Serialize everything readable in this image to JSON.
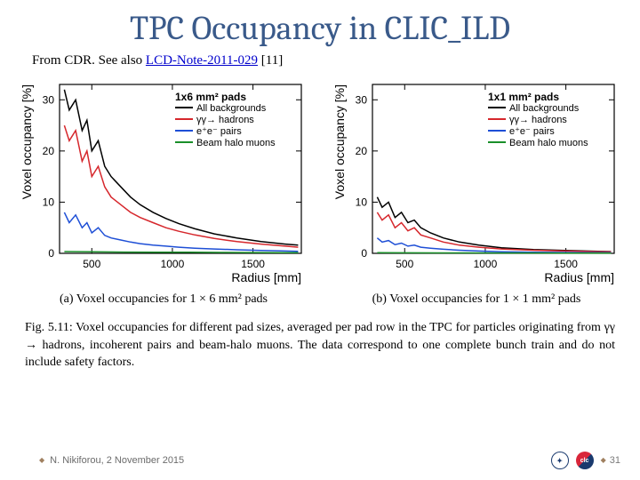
{
  "title": "TPC Occupancy in CLIC_ILD",
  "subtitle_prefix": "From CDR. See also  ",
  "subtitle_link": "LCD-Note-2011-029",
  "subtitle_suffix": " [11]",
  "footer_author": "N. Nikiforou, 2 November 2015",
  "page_number": "31",
  "colors": {
    "title": "#3a5a8a",
    "axis": "#000000",
    "series_all": "#000000",
    "series_gg": "#d6272c",
    "series_ee": "#1e4fd6",
    "series_halo": "#1a8f2a",
    "grid": "#000000",
    "background": "#ffffff"
  },
  "fig_caption": "Fig. 5.11:  Voxel occupancies for different pad sizes, averaged per pad row in the TPC for particles originating from γγ → hadrons, incoherent pairs and beam-halo muons.  The data correspond to one complete bunch train and do not include safety factors.",
  "panel_caption_a": "(a) Voxel occupancies for 1 × 6 mm² pads",
  "panel_caption_b": "(b) Voxel occupancies for 1 × 1 mm² pads",
  "chart_common": {
    "xlabel": "Radius [mm]",
    "ylabel": "Voxel occupancy [%]",
    "xlim": [
      300,
      1800
    ],
    "xticks": [
      500,
      1000,
      1500
    ],
    "axis_linewidth": 1.2,
    "line_width": 1.5,
    "legend_pos": "top-right",
    "legend_fontsize": 11
  },
  "chart_a": {
    "legend_title": "1x6 mm² pads",
    "ylim": [
      0,
      33
    ],
    "yticks": [
      0,
      10,
      20,
      30
    ],
    "series": [
      {
        "name": "All backgrounds",
        "color": "#000000",
        "x": [
          330,
          360,
          400,
          440,
          470,
          500,
          540,
          580,
          620,
          680,
          740,
          800,
          880,
          960,
          1040,
          1140,
          1260,
          1400,
          1550,
          1700,
          1780
        ],
        "y": [
          32,
          28,
          30,
          24,
          26,
          20,
          22,
          17,
          15,
          13,
          11,
          9.5,
          8,
          6.8,
          5.8,
          4.8,
          3.8,
          3.0,
          2.3,
          1.8,
          1.6
        ]
      },
      {
        "name": "γγ→ hadrons",
        "color": "#d6272c",
        "x": [
          330,
          360,
          400,
          440,
          470,
          500,
          540,
          580,
          620,
          680,
          740,
          800,
          880,
          960,
          1040,
          1140,
          1260,
          1400,
          1550,
          1700,
          1780
        ],
        "y": [
          25,
          22,
          24,
          18,
          20,
          15,
          17,
          13,
          11,
          9.5,
          8,
          7,
          6,
          5,
          4.3,
          3.6,
          2.9,
          2.3,
          1.8,
          1.4,
          1.2
        ]
      },
      {
        "name": "e⁺e⁻ pairs",
        "color": "#1e4fd6",
        "x": [
          330,
          360,
          400,
          440,
          470,
          500,
          540,
          580,
          620,
          680,
          740,
          800,
          880,
          960,
          1040,
          1140,
          1260,
          1400,
          1550,
          1700,
          1780
        ],
        "y": [
          8,
          6,
          7.5,
          5,
          6,
          4,
          5,
          3.5,
          3,
          2.6,
          2.2,
          1.9,
          1.6,
          1.4,
          1.2,
          1.0,
          0.85,
          0.7,
          0.55,
          0.45,
          0.4
        ]
      },
      {
        "name": "Beam halo muons",
        "color": "#1a8f2a",
        "x": [
          330,
          500,
          700,
          900,
          1100,
          1300,
          1500,
          1700,
          1780
        ],
        "y": [
          0.35,
          0.3,
          0.25,
          0.22,
          0.2,
          0.18,
          0.16,
          0.14,
          0.13
        ]
      }
    ]
  },
  "chart_b": {
    "legend_title": "1x1 mm² pads",
    "ylim": [
      0,
      33
    ],
    "yticks": [
      0,
      10,
      20,
      30
    ],
    "series": [
      {
        "name": "All backgrounds",
        "color": "#000000",
        "x": [
          330,
          360,
          400,
          440,
          480,
          520,
          560,
          600,
          660,
          740,
          840,
          960,
          1100,
          1300,
          1500,
          1700,
          1780
        ],
        "y": [
          11,
          9,
          10,
          7,
          8,
          6,
          6.5,
          5,
          4,
          3,
          2.2,
          1.6,
          1.1,
          0.75,
          0.55,
          0.4,
          0.35
        ]
      },
      {
        "name": "γγ→ hadrons",
        "color": "#d6272c",
        "x": [
          330,
          360,
          400,
          440,
          480,
          520,
          560,
          600,
          660,
          740,
          840,
          960,
          1100,
          1300,
          1500,
          1700,
          1780
        ],
        "y": [
          8,
          6.5,
          7.5,
          5,
          6,
          4.4,
          5,
          3.6,
          3,
          2.2,
          1.6,
          1.2,
          0.85,
          0.6,
          0.45,
          0.33,
          0.3
        ]
      },
      {
        "name": "e⁺e⁻ pairs",
        "color": "#1e4fd6",
        "x": [
          330,
          360,
          400,
          440,
          480,
          520,
          560,
          600,
          660,
          740,
          840,
          960,
          1100,
          1300,
          1500,
          1700,
          1780
        ],
        "y": [
          3,
          2.2,
          2.5,
          1.7,
          2,
          1.4,
          1.6,
          1.2,
          1,
          0.8,
          0.6,
          0.45,
          0.32,
          0.22,
          0.17,
          0.13,
          0.12
        ]
      },
      {
        "name": "Beam halo muons",
        "color": "#1a8f2a",
        "x": [
          330,
          500,
          700,
          900,
          1100,
          1300,
          1500,
          1700,
          1780
        ],
        "y": [
          0.12,
          0.1,
          0.09,
          0.08,
          0.07,
          0.065,
          0.06,
          0.055,
          0.05
        ]
      }
    ]
  }
}
